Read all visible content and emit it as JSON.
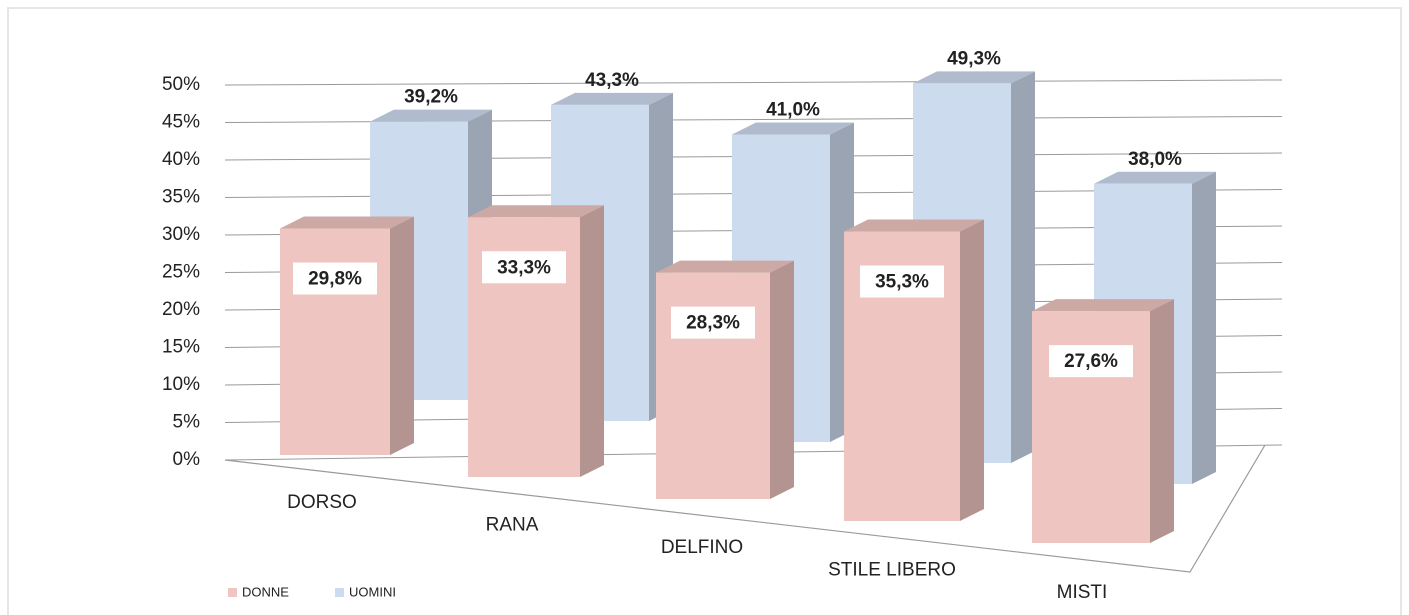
{
  "chart_data": {
    "type": "bar3d",
    "categories": [
      "DORSO",
      "RANA",
      "DELFINO",
      "STILE LIBERO",
      "MISTI"
    ],
    "series": [
      {
        "name": "DONNE",
        "color": "#eec5c0",
        "values": [
          29.8,
          33.3,
          28.3,
          35.3,
          27.6
        ],
        "value_labels": [
          "29,8%",
          "33,3%",
          "28,3%",
          "35,3%",
          "27,6%"
        ]
      },
      {
        "name": "UOMINI",
        "color": "#cddbef",
        "values": [
          39.2,
          43.3,
          41.0,
          49.3,
          38.0
        ],
        "value_labels": [
          "39,2%",
          "43,3%",
          "41,0%",
          "49,3%",
          "38,0%"
        ]
      }
    ],
    "ylim": [
      0,
      50
    ],
    "yticks": [
      {
        "value": 0,
        "label": "0%"
      },
      {
        "value": 5,
        "label": "5%"
      },
      {
        "value": 10,
        "label": "10%"
      },
      {
        "value": 15,
        "label": "15%"
      },
      {
        "value": 20,
        "label": "20%"
      },
      {
        "value": 25,
        "label": "25%"
      },
      {
        "value": 30,
        "label": "30%"
      },
      {
        "value": 35,
        "label": "35%"
      },
      {
        "value": 40,
        "label": "40%"
      },
      {
        "value": 45,
        "label": "45%"
      },
      {
        "value": 50,
        "label": "50%"
      }
    ],
    "grid": true,
    "legend": "bottom-left"
  }
}
